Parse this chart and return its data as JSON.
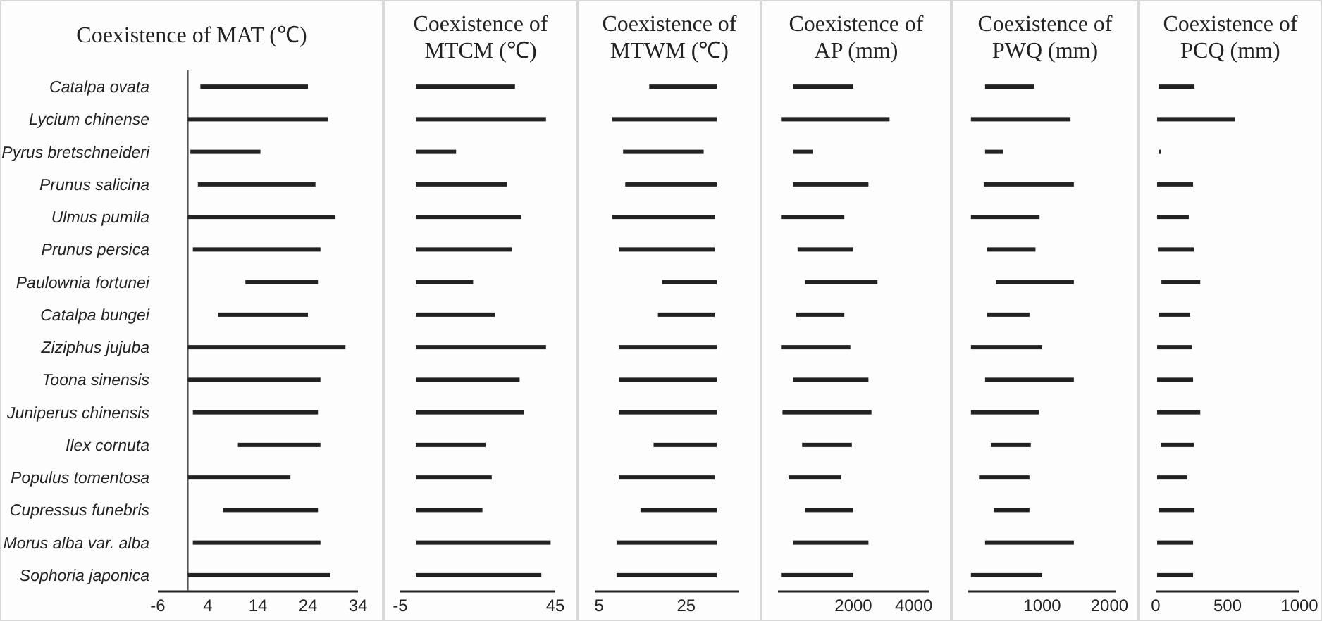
{
  "chart_data": [
    {
      "type": "bar",
      "orientation": "horizontal",
      "title": "Coexistence of MAT (℃)",
      "categories": [
        "Catalpa ovata",
        "Lycium chinense",
        "Pyrus bretschneideri",
        "Prunus salicina",
        "Ulmus pumila",
        "Prunus persica",
        "Paulownia fortunei",
        "Catalpa bungei",
        "Ziziphus jujuba",
        "Toona sinensis",
        "Juniperus chinensis",
        "Ilex cornuta",
        "Populus tomentosa",
        "Cupressus funebris",
        "Morus alba var. alba",
        "Sophoria japonica"
      ],
      "base": [
        2.5,
        0,
        0.5,
        2,
        0,
        1,
        11.5,
        6,
        0,
        0,
        1,
        10,
        0,
        7,
        1,
        0
      ],
      "values": [
        21.5,
        28,
        14,
        23.5,
        29.5,
        25.5,
        14.5,
        18,
        31.5,
        26.5,
        25,
        16.5,
        20.5,
        19,
        25.5,
        28.5
      ],
      "color": "#222222",
      "xlim": [
        -6,
        34
      ],
      "xticks": [
        -6,
        4,
        14,
        24,
        34
      ]
    },
    {
      "type": "bar",
      "orientation": "horizontal",
      "title": "Coexistence of MTCM (℃)",
      "categories": [
        null,
        null,
        null,
        null,
        null,
        null,
        null,
        null,
        null,
        null,
        null,
        null,
        null,
        null,
        null,
        null
      ],
      "values": [
        32,
        42,
        13,
        29.5,
        34,
        31,
        18.5,
        25.5,
        42,
        33.5,
        35,
        22.5,
        24.5,
        21.5,
        43.5,
        40.5
      ],
      "color": "#222222",
      "xlim": [
        -5,
        45
      ],
      "xticks": [
        -5,
        45
      ],
      "tick_labels": "x"
    },
    {
      "type": "bar",
      "orientation": "horizontal",
      "title": "Coexistence of MTWM (℃)",
      "categories": [
        null,
        null,
        null,
        null,
        null,
        null,
        null,
        null,
        null,
        null,
        null,
        null,
        null,
        null,
        null,
        null
      ],
      "base": [
        16.5,
        8,
        10.5,
        11,
        8,
        9.5,
        19.5,
        18.5,
        9.5,
        9.5,
        9.5,
        17.5,
        9.5,
        14.5,
        9,
        9
      ],
      "values": [
        15.5,
        24,
        18.5,
        21,
        23.5,
        22,
        12.5,
        13,
        22.5,
        22.5,
        22.5,
        14.5,
        22,
        17.5,
        23,
        23
      ],
      "color": "#222222",
      "xlim": [
        4,
        37
      ],
      "xticks": [
        5,
        25
      ],
      "tick_labels": "x"
    },
    {
      "type": "bar",
      "orientation": "horizontal",
      "title": "Coexistence of AP (mm)",
      "categories": [
        null,
        null,
        null,
        null,
        null,
        null,
        null,
        null,
        null,
        null,
        null,
        null,
        null,
        null,
        null,
        null
      ],
      "base": [
        0,
        -400,
        0,
        0,
        -400,
        150,
        400,
        100,
        -400,
        0,
        -350,
        300,
        -150,
        400,
        0,
        -400
      ],
      "values": [
        2000,
        3600,
        650,
        2500,
        2100,
        1850,
        2400,
        1600,
        2300,
        2500,
        2950,
        1650,
        1750,
        1600,
        2500,
        2400
      ],
      "color": "#222222",
      "xlim": [
        -500,
        4500
      ],
      "xticks": [
        2000,
        4000
      ],
      "tick_labels": "x"
    },
    {
      "type": "bar",
      "orientation": "horizontal",
      "title": "Coexistence of PWQ (mm)",
      "categories": [
        null,
        null,
        null,
        null,
        null,
        null,
        null,
        null,
        null,
        null,
        null,
        null,
        null,
        null,
        null,
        null
      ],
      "base": [
        150,
        -60,
        150,
        130,
        -60,
        180,
        310,
        180,
        -60,
        150,
        -60,
        240,
        60,
        280,
        150,
        -60
      ],
      "values": [
        730,
        1480,
        270,
        1340,
        1020,
        720,
        1160,
        630,
        1060,
        1320,
        1010,
        590,
        750,
        530,
        1320,
        1060
      ],
      "color": "#222222",
      "xlim": [
        -100,
        2100
      ],
      "xticks": [
        1000,
        2000
      ],
      "tick_labels": "x"
    },
    {
      "type": "bar",
      "orientation": "horizontal",
      "title": "Coexistence of PCQ (mm)",
      "categories": [
        null,
        null,
        null,
        null,
        null,
        null,
        null,
        null,
        null,
        null,
        null,
        null,
        null,
        null,
        null,
        null
      ],
      "base": [
        20,
        10,
        20,
        10,
        10,
        15,
        40,
        20,
        10,
        10,
        10,
        35,
        10,
        20,
        10,
        10
      ],
      "values": [
        250,
        540,
        10,
        250,
        220,
        250,
        270,
        220,
        240,
        250,
        300,
        230,
        210,
        250,
        250,
        250
      ],
      "color": "#222222",
      "xlim": [
        0,
        1000
      ],
      "xticks": [
        0,
        500,
        1000
      ],
      "tick_labels": "x"
    }
  ]
}
